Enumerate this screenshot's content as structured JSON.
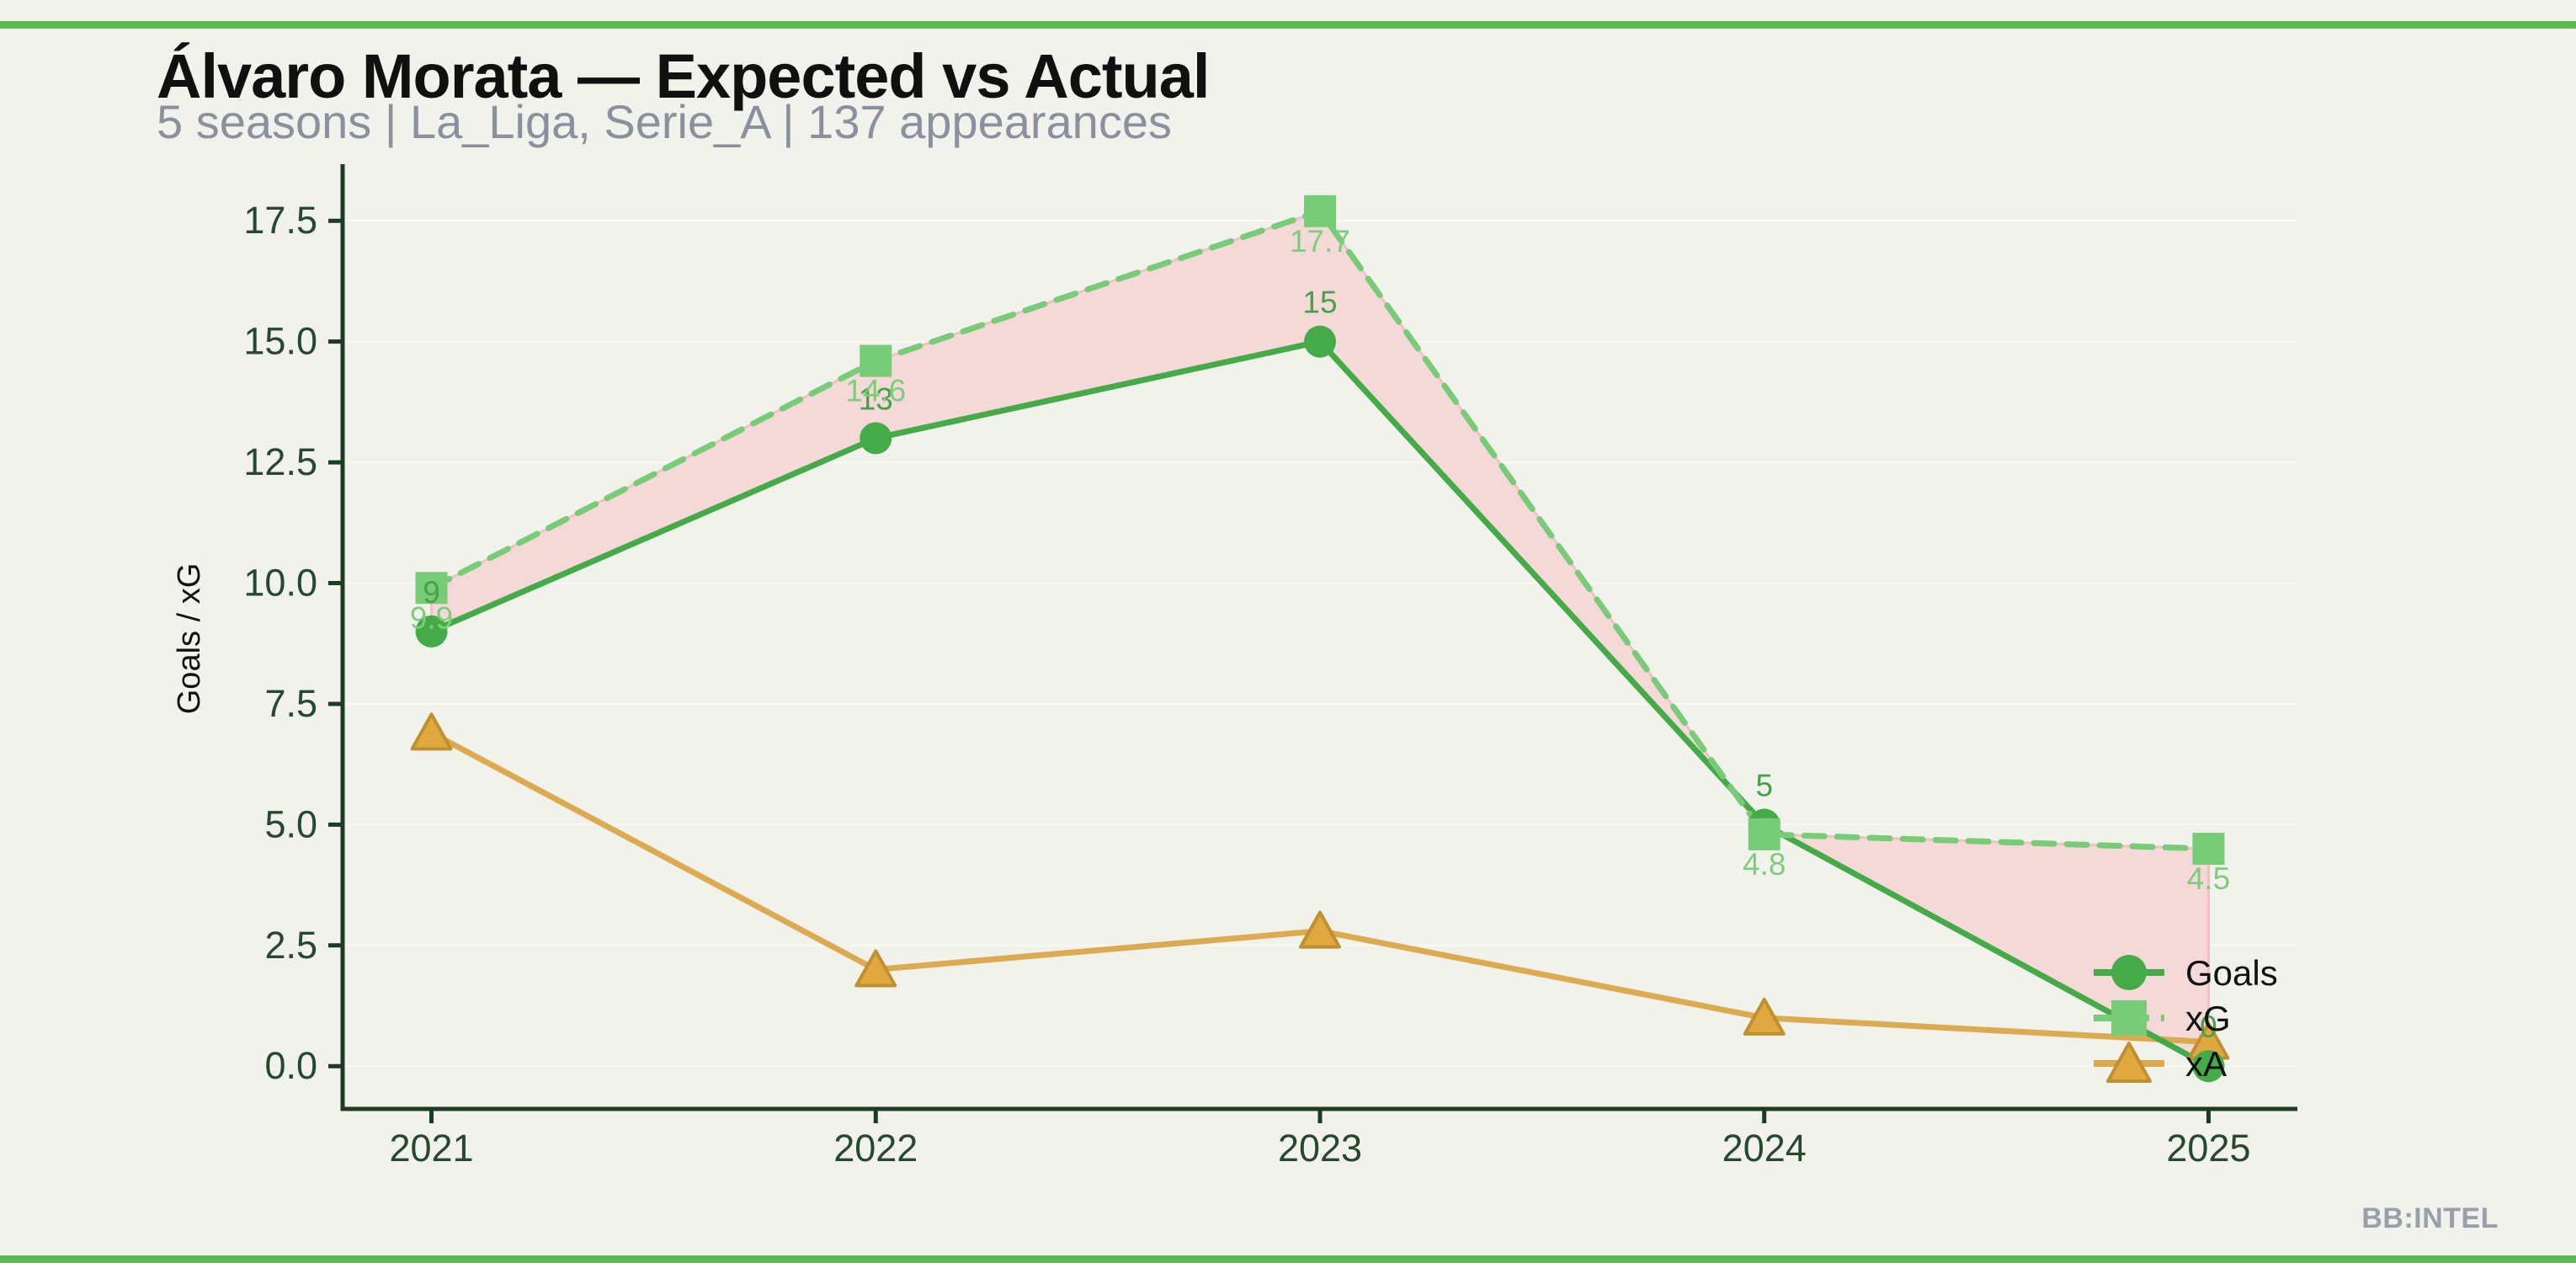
{
  "page": {
    "title": "Álvaro Morata — Expected vs Actual",
    "subtitle": "5 seasons | La_Liga, Serie_A | 137 appearances",
    "watermark": "BB:INTEL"
  },
  "theme": {
    "background": "#f2f2ec",
    "accent_bar_green": "#5bba53",
    "spine_color": "#1d3a23",
    "tick_label_color": "#26492e",
    "title_color": "#101010",
    "subtitle_color": "#8a919d",
    "watermark_color": "#9aa0a9",
    "gridline_color": "#fafaf5"
  },
  "chart_data": {
    "type": "line",
    "title": "Álvaro Morata — Expected vs Actual",
    "subtitle": "5 seasons | La_Liga, Serie_A | 137 appearances",
    "x": [
      2021,
      2022,
      2023,
      2024,
      2025
    ],
    "x_tick_labels": [
      "2021",
      "2022",
      "2023",
      "2024",
      "2025"
    ],
    "xlabel": "",
    "ylabel": "Goals / xG",
    "y_tick_labels": [
      "0.0",
      "2.5",
      "5.0",
      "7.5",
      "10.0",
      "12.5",
      "15.0",
      "17.5"
    ],
    "y_tick_values": [
      0,
      2.5,
      5,
      7.5,
      10,
      12.5,
      15,
      17.5
    ],
    "ylim": [
      -0.885,
      18.585
    ],
    "xlim": [
      2020.8,
      2025.2
    ],
    "grid": "faint horizontal gridlines at y ticks",
    "series": [
      {
        "name": "Goals",
        "values": [
          9,
          13,
          15,
          5,
          0
        ],
        "point_labels": [
          "9",
          "13",
          "15",
          "5",
          "0"
        ],
        "label_side": "above",
        "color": "#45ab48",
        "label_color": "#44a348",
        "linestyle": "solid",
        "marker": "circle",
        "marker_fill": "#45ab48"
      },
      {
        "name": "xG",
        "values": [
          9.9,
          14.6,
          17.7,
          4.8,
          4.5
        ],
        "point_labels": [
          "9.9",
          "14.6",
          "17.7",
          "4.8",
          "4.5"
        ],
        "label_side": "below",
        "color": "#78cb77",
        "label_color": "#7ecd7d",
        "linestyle": "dashed",
        "marker": "square",
        "marker_fill": "#78cb77"
      },
      {
        "name": "xA",
        "values": [
          6.9,
          2.0,
          2.8,
          1.0,
          0.5
        ],
        "point_labels": [
          "",
          "",
          "",
          "",
          ""
        ],
        "label_side": "none",
        "color": "#dcab51",
        "label_color": "#dcab51",
        "linestyle": "solid",
        "marker": "triangle",
        "marker_fill": "#e0a83e",
        "marker_edge": "#bf9030"
      }
    ],
    "fill_between": {
      "upper": "xG",
      "lower": "Goals",
      "fill_color": "#f5d9d8",
      "edge_color": "#f1c2c0"
    },
    "legend": {
      "position": "lower right (inside axes)",
      "entries": [
        "Goals",
        "xG",
        "xA"
      ],
      "text_color": "#111111"
    }
  }
}
